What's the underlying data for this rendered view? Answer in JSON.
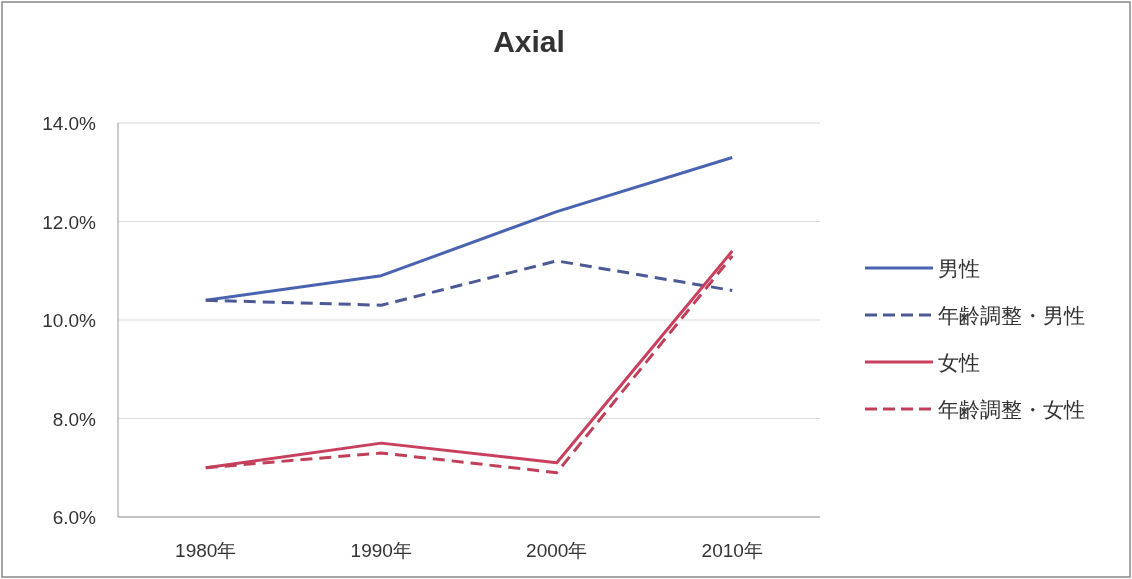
{
  "chart_data": {
    "type": "line",
    "title": "Axial",
    "categories": [
      "1980年",
      "1990年",
      "2000年",
      "2010年"
    ],
    "series": [
      {
        "name": "男性",
        "color": "#4a63b0",
        "line_style": "solid",
        "values": [
          10.4,
          10.9,
          12.2,
          13.3
        ]
      },
      {
        "name": "年齢調整・男性",
        "color": "#4b5a95",
        "line_style": "dashed",
        "values": [
          10.4,
          10.3,
          11.2,
          10.6
        ]
      },
      {
        "name": "女性",
        "color": "#c8405e",
        "line_style": "solid",
        "values": [
          7.0,
          7.5,
          7.1,
          11.4
        ]
      },
      {
        "name": "年齢調整・女性",
        "color": "#c0405a",
        "line_style": "dashed",
        "values": [
          7.0,
          7.3,
          6.9,
          11.3
        ]
      }
    ],
    "ylim": [
      6,
      14
    ],
    "yticks": [
      {
        "value": 6,
        "label": "6.0%"
      },
      {
        "value": 8,
        "label": "8.0%"
      },
      {
        "value": 10,
        "label": "10.0%"
      },
      {
        "value": 12,
        "label": "12.0%"
      },
      {
        "value": 14,
        "label": "14.0%"
      }
    ],
    "grid": "y",
    "legend": "right"
  }
}
